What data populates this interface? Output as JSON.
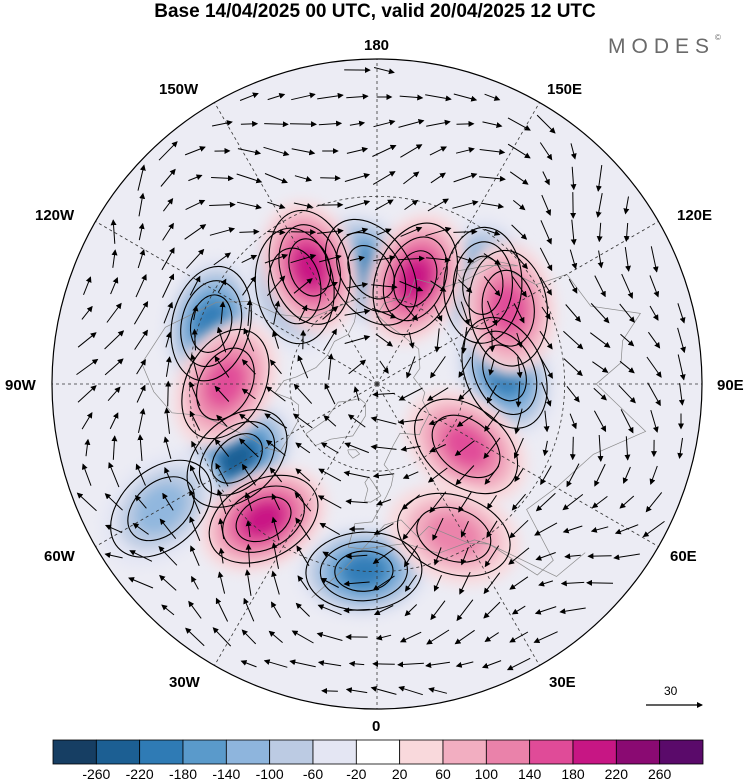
{
  "title": "Base 14/04/2025 00 UTC, valid 20/04/2025 12 UTC",
  "brand": "MODES",
  "brand_mark": "©",
  "longitude_labels": {
    "top": "180",
    "bottom": "0",
    "left": "90W",
    "right": "90E",
    "upper_left_1": "150W",
    "upper_left_2": "120W",
    "lower_left_1": "60W",
    "lower_left_2": "30W",
    "upper_right_1": "150E",
    "upper_right_2": "120E",
    "lower_right_1": "60E",
    "lower_right_2": "30E"
  },
  "reference_vector": {
    "label": "30"
  },
  "colorbar": {
    "ticks": [
      "-260",
      "-220",
      "-180",
      "-140",
      "-100",
      "-60",
      "-20",
      "20",
      "60",
      "100",
      "140",
      "180",
      "220",
      "260"
    ],
    "colors": [
      "#163e63",
      "#1c5f93",
      "#2f7bb5",
      "#5a9acb",
      "#8eb5dd",
      "#bccbe3",
      "#e4e6f3",
      "#ffffff",
      "#f9d9dc",
      "#f2aec1",
      "#ea82aa",
      "#e04b98",
      "#c71684",
      "#8a0a72",
      "#5a0a6a"
    ]
  },
  "map_fields": {
    "negative_centers": [
      {
        "name": "blue-180-north",
        "lon": -177,
        "lat": 52,
        "value": -200
      },
      {
        "name": "blue-130e",
        "lon": 133,
        "lat": 42,
        "value": -180
      },
      {
        "name": "blue-95e",
        "lon": 95,
        "lat": 47,
        "value": -200
      },
      {
        "name": "blue-110w",
        "lon": -110,
        "lat": 33,
        "value": -180
      },
      {
        "name": "blue-140w",
        "lon": -140,
        "lat": 47,
        "value": -140
      },
      {
        "name": "blue-60w",
        "lon": -62,
        "lat": 38,
        "value": -220
      },
      {
        "name": "blue-55w-south",
        "lon": -60,
        "lat": 15,
        "value": -120
      },
      {
        "name": "blue-10w",
        "lon": -4,
        "lat": 30,
        "value": -200
      }
    ],
    "positive_centers": [
      {
        "name": "pink-150w",
        "lon": -150,
        "lat": 45,
        "value": 200
      },
      {
        "name": "pink-160e",
        "lon": 160,
        "lat": 52,
        "value": 180
      },
      {
        "name": "pink-120e",
        "lon": 120,
        "lat": 40,
        "value": 140
      },
      {
        "name": "pink-85w",
        "lon": -90,
        "lat": 40,
        "value": 140
      },
      {
        "name": "pink-40w",
        "lon": -40,
        "lat": 33,
        "value": 200
      },
      {
        "name": "pink-60e",
        "lon": 55,
        "lat": 53,
        "value": 140
      },
      {
        "name": "pink-30e",
        "lon": 27,
        "lat": 35,
        "value": 120
      }
    ]
  }
}
